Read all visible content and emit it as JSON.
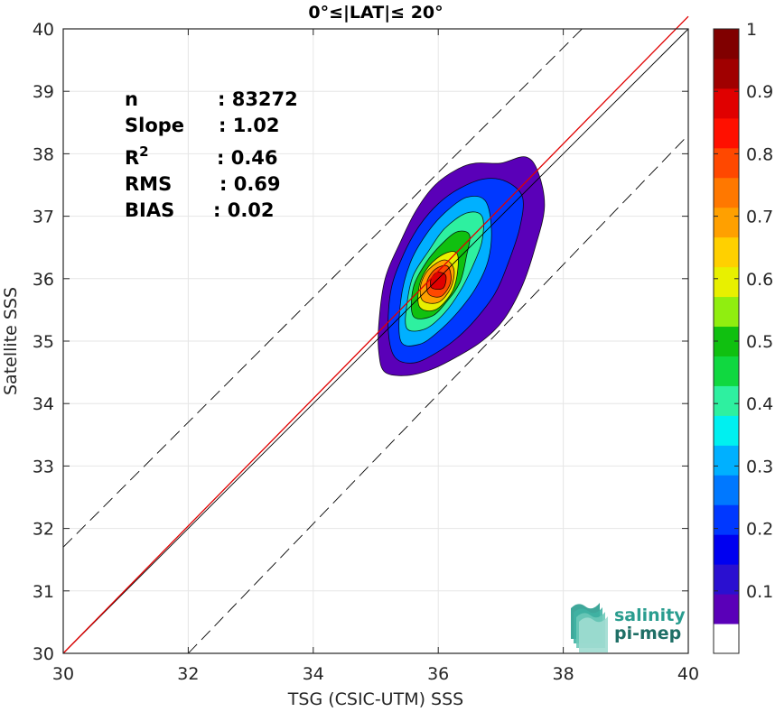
{
  "chart_data": {
    "type": "heatmap",
    "title": "0°≤|LAT|≤ 20°",
    "xlabel": "TSG (CSIC-UTM) SSS",
    "ylabel": "Satellite SSS",
    "xlim": [
      30,
      40
    ],
    "ylim": [
      30,
      40
    ],
    "xticks": [
      30,
      32,
      34,
      36,
      38,
      40
    ],
    "yticks": [
      30,
      31,
      32,
      33,
      34,
      35,
      36,
      37,
      38,
      39,
      40
    ],
    "grid": true,
    "stats": [
      {
        "label": "n",
        "value": ": 83272"
      },
      {
        "label": "Slope",
        "value": ": 1.02"
      },
      {
        "label": "R",
        "sup": "2",
        "value": ": 0.46"
      },
      {
        "label": "RMS",
        "value": ": 0.69"
      },
      {
        "label": "BIAS",
        "value": ": 0.02"
      }
    ],
    "reference_lines": [
      {
        "name": "one-to-one",
        "color": "#000000",
        "points": [
          [
            30,
            30
          ],
          [
            40,
            40
          ]
        ]
      },
      {
        "name": "regression",
        "color": "#e00000",
        "points": [
          [
            30,
            30.0
          ],
          [
            40,
            40.2
          ]
        ]
      },
      {
        "name": "upper-dashed",
        "color": "#000000",
        "dash": true,
        "points": [
          [
            30,
            31.7
          ],
          [
            38.3,
            40
          ]
        ]
      },
      {
        "name": "lower-dashed",
        "color": "#000000",
        "dash": true,
        "points": [
          [
            32,
            30
          ],
          [
            40,
            38.3
          ]
        ]
      }
    ],
    "density_center": [
      36.0,
      35.95
    ],
    "density_extent": {
      "x": [
        35.0,
        37.7
      ],
      "y": [
        34.4,
        37.95
      ]
    },
    "colorbar": {
      "range": [
        0,
        1
      ],
      "ticks": [
        "0.1",
        "0.2",
        "0.3",
        "0.4",
        "0.5",
        "0.6",
        "0.7",
        "0.8",
        "0.9",
        "1"
      ],
      "colors": [
        "#ffffff",
        "#5a00b8",
        "#2a10d0",
        "#0000f0",
        "#0038ff",
        "#0078ff",
        "#00b0ff",
        "#00f0f0",
        "#2ef0a0",
        "#10d840",
        "#10c010",
        "#90ee10",
        "#e8f000",
        "#ffd000",
        "#ffa000",
        "#ff7800",
        "#ff4800",
        "#ff1000",
        "#e00000",
        "#a00000",
        "#800000"
      ]
    },
    "contour_levels": [
      {
        "level": 0.05,
        "color": "#5a00b8",
        "pts": [
          [
            35.15,
            34.5
          ],
          [
            35.5,
            34.45
          ],
          [
            35.9,
            34.55
          ],
          [
            36.3,
            34.75
          ],
          [
            36.7,
            35.0
          ],
          [
            37.05,
            35.35
          ],
          [
            37.35,
            35.9
          ],
          [
            37.55,
            36.5
          ],
          [
            37.7,
            37.15
          ],
          [
            37.6,
            37.7
          ],
          [
            37.4,
            37.95
          ],
          [
            37.0,
            37.85
          ],
          [
            36.6,
            37.85
          ],
          [
            36.3,
            37.75
          ],
          [
            35.95,
            37.5
          ],
          [
            35.65,
            37.1
          ],
          [
            35.4,
            36.6
          ],
          [
            35.15,
            36.0
          ],
          [
            35.05,
            35.3
          ],
          [
            35.05,
            34.8
          ]
        ]
      },
      {
        "level": 0.15,
        "color": "#0038ff",
        "pts": [
          [
            35.3,
            34.75
          ],
          [
            35.6,
            34.65
          ],
          [
            35.95,
            34.8
          ],
          [
            36.3,
            35.05
          ],
          [
            36.6,
            35.35
          ],
          [
            36.9,
            35.75
          ],
          [
            37.1,
            36.2
          ],
          [
            37.3,
            36.8
          ],
          [
            37.35,
            37.3
          ],
          [
            37.1,
            37.55
          ],
          [
            36.75,
            37.6
          ],
          [
            36.35,
            37.45
          ],
          [
            36.0,
            37.2
          ],
          [
            35.7,
            36.85
          ],
          [
            35.45,
            36.4
          ],
          [
            35.25,
            35.85
          ],
          [
            35.2,
            35.2
          ]
        ]
      },
      {
        "level": 0.3,
        "color": "#00b0ff",
        "pts": [
          [
            35.4,
            35.0
          ],
          [
            35.7,
            34.95
          ],
          [
            36.0,
            35.15
          ],
          [
            36.3,
            35.45
          ],
          [
            36.6,
            35.85
          ],
          [
            36.8,
            36.3
          ],
          [
            36.85,
            36.8
          ],
          [
            36.75,
            37.25
          ],
          [
            36.45,
            37.3
          ],
          [
            36.1,
            37.05
          ],
          [
            35.8,
            36.7
          ],
          [
            35.55,
            36.25
          ],
          [
            35.4,
            35.65
          ]
        ]
      },
      {
        "level": 0.4,
        "color": "#2ef0a0",
        "pts": [
          [
            35.5,
            35.2
          ],
          [
            35.8,
            35.2
          ],
          [
            36.1,
            35.45
          ],
          [
            36.35,
            35.8
          ],
          [
            36.55,
            36.2
          ],
          [
            36.7,
            36.6
          ],
          [
            36.7,
            37.0
          ],
          [
            36.45,
            37.05
          ],
          [
            36.1,
            36.8
          ],
          [
            35.85,
            36.45
          ],
          [
            35.6,
            36.05
          ],
          [
            35.5,
            35.6
          ]
        ]
      },
      {
        "level": 0.55,
        "color": "#10c010",
        "pts": [
          [
            35.6,
            35.4
          ],
          [
            35.9,
            35.4
          ],
          [
            36.15,
            35.65
          ],
          [
            36.35,
            35.95
          ],
          [
            36.45,
            36.35
          ],
          [
            36.5,
            36.7
          ],
          [
            36.3,
            36.75
          ],
          [
            36.05,
            36.55
          ],
          [
            35.8,
            36.25
          ],
          [
            35.6,
            35.85
          ]
        ]
      },
      {
        "level": 0.65,
        "color": "#e8f000",
        "pts": [
          [
            35.7,
            35.55
          ],
          [
            35.95,
            35.5
          ],
          [
            36.2,
            35.75
          ],
          [
            36.3,
            36.05
          ],
          [
            36.3,
            36.4
          ],
          [
            36.1,
            36.4
          ],
          [
            35.85,
            36.2
          ],
          [
            35.7,
            35.9
          ]
        ]
      },
      {
        "level": 0.75,
        "color": "#ffa000",
        "pts": [
          [
            35.75,
            35.65
          ],
          [
            36.0,
            35.62
          ],
          [
            36.2,
            35.85
          ],
          [
            36.25,
            36.15
          ],
          [
            36.1,
            36.3
          ],
          [
            35.85,
            36.15
          ],
          [
            35.72,
            35.9
          ]
        ]
      },
      {
        "level": 0.85,
        "color": "#ff4800",
        "pts": [
          [
            35.85,
            35.75
          ],
          [
            36.05,
            35.72
          ],
          [
            36.2,
            35.95
          ],
          [
            36.15,
            36.2
          ],
          [
            35.95,
            36.15
          ],
          [
            35.82,
            35.95
          ]
        ]
      },
      {
        "level": 0.95,
        "color": "#e00000",
        "pts": [
          [
            35.9,
            35.85
          ],
          [
            36.08,
            35.85
          ],
          [
            36.12,
            36.05
          ],
          [
            35.98,
            36.1
          ],
          [
            35.88,
            35.98
          ]
        ]
      }
    ],
    "logo": {
      "line1": "salinity",
      "line2": "pi-mep"
    }
  }
}
